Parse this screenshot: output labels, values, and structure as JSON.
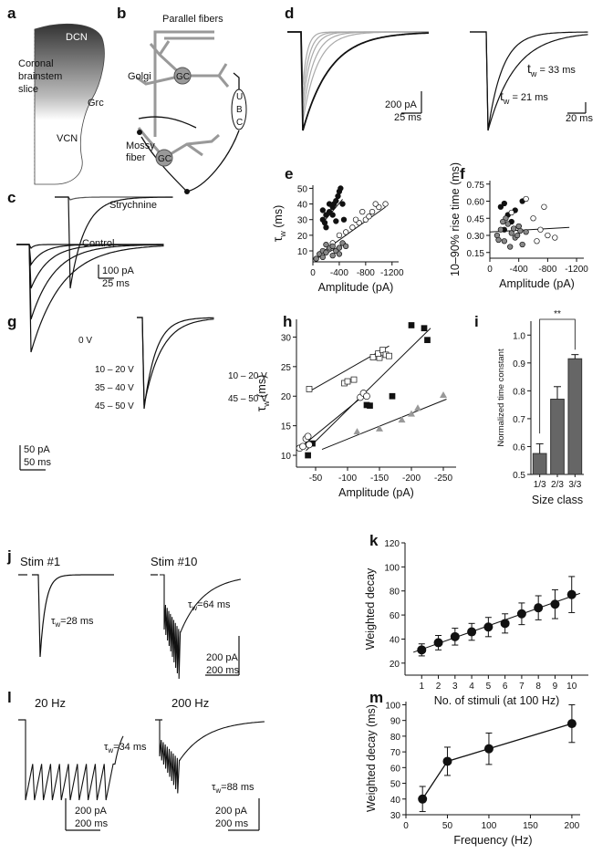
{
  "panel_labels": [
    "a",
    "b",
    "c",
    "d",
    "e",
    "f",
    "g",
    "h",
    "i",
    "j",
    "k",
    "l",
    "m"
  ],
  "panel_a": {
    "labels": [
      "DCN",
      "Coronal",
      "brainstem",
      "slice",
      "Grc",
      "VCN"
    ]
  },
  "panel_b": {
    "labels": [
      "Parallel fibers",
      "Golgi",
      "GC",
      "GC",
      "Mossy",
      "fiber",
      "U",
      "B",
      "C"
    ]
  },
  "panel_c": {
    "labels": [
      "Strychnine",
      "Control",
      "100 pA",
      "25 ms"
    ]
  },
  "panel_d": {
    "labels": [
      "200 pA",
      "25 ms",
      "20 ms"
    ],
    "tau": [
      {
        "sym": "t",
        "sub": "w",
        "rest": " = 33 ms"
      },
      {
        "sym": "t",
        "sub": "w",
        "rest": " = 21 ms"
      }
    ]
  },
  "panel_g": {
    "labels": [
      "0 V",
      "10 – 20 V",
      "35 – 40 V",
      "45 – 50 V",
      "10 – 20 V",
      "45 – 50 V",
      "50 pA",
      "50 ms"
    ]
  },
  "panel_j": {
    "labels": [
      "Stim #1",
      "Stim #10",
      "200 pA",
      "200 ms"
    ],
    "tau": [
      {
        "sym": "τ",
        "sub": "w",
        "rest": "=28 ms"
      },
      {
        "sym": "τ",
        "sub": "w",
        "rest": "=64 ms"
      }
    ]
  },
  "panel_l": {
    "labels": [
      "20 Hz",
      "200 Hz",
      "200 pA",
      "200 ms",
      "200 pA",
      "200 ms"
    ],
    "tau": [
      {
        "sym": "τ",
        "sub": "w",
        "rest": "=34 ms"
      },
      {
        "sym": "τ",
        "sub": "w",
        "rest": "=88 ms"
      }
    ]
  },
  "chart_data": [
    {
      "type": "scatter",
      "panel": "e",
      "xlabel": "Amplitude (pA)",
      "ylabel": {
        "sym": "τ",
        "sub": "w",
        "rest": " (ms)"
      },
      "xlim": [
        0,
        -1300
      ],
      "ylim": [
        3,
        52
      ],
      "xticks": [
        0,
        -400,
        -800,
        -1200
      ],
      "yticks": [
        10,
        20,
        30,
        40,
        50
      ],
      "series": [
        {
          "color": "#111111",
          "marker": "circle",
          "x": [
            -150,
            -180,
            -200,
            -250,
            -300,
            -320,
            -350,
            -380,
            -400,
            -420,
            -150,
            -250,
            -300,
            -450,
            -470,
            -350,
            -200
          ],
          "values": [
            30,
            28,
            33,
            35,
            38,
            40,
            42,
            45,
            48,
            50,
            36,
            40,
            33,
            40,
            30,
            29,
            25
          ]
        },
        {
          "color": "#ffffff",
          "marker": "circle",
          "x": [
            -300,
            -400,
            -500,
            -600,
            -700,
            -800,
            -900,
            -1000,
            -1100,
            -650,
            -750,
            -850,
            -950
          ],
          "values": [
            15,
            20,
            22,
            25,
            28,
            30,
            35,
            38,
            40,
            30,
            35,
            32,
            40
          ]
        },
        {
          "color": "#888888",
          "marker": "circle",
          "x": [
            -50,
            -100,
            -150,
            -200,
            -250,
            -300,
            -350,
            -400,
            -450,
            -500,
            -200,
            -300,
            -150,
            -400
          ],
          "values": [
            5,
            8,
            10,
            9,
            12,
            13,
            10,
            12,
            15,
            13,
            14,
            7,
            6,
            8
          ]
        }
      ],
      "fits": [
        {
          "x": [
            -150,
            -450
          ],
          "y": [
            28,
            43
          ]
        },
        {
          "x": [
            -100,
            -1100
          ],
          "y": [
            8,
            38
          ]
        },
        {
          "x": [
            -50,
            -500
          ],
          "y": [
            5,
            15
          ]
        }
      ]
    },
    {
      "type": "scatter",
      "panel": "f",
      "xlabel": "Amplitude (pA)",
      "ylabel": "10–90% rise time (ms)",
      "xlim": [
        0,
        -1300
      ],
      "ylim": [
        0.1,
        0.78
      ],
      "xticks": [
        0,
        -400,
        -800,
        -1200
      ],
      "yticks": [
        0.15,
        {
          "value": 0.3,
          "label": "0.30"
        },
        0.45,
        {
          "value": 0.6,
          "label": "0.60"
        },
        0.75
      ],
      "series": [
        {
          "color": "#111111",
          "marker": "circle",
          "x": [
            -150,
            -200,
            -250,
            -300,
            -350,
            -400,
            -450,
            -200
          ],
          "values": [
            0.55,
            0.58,
            0.48,
            0.42,
            0.52,
            0.38,
            0.6,
            0.35
          ]
        },
        {
          "color": "#ffffff",
          "marker": "circle",
          "x": [
            -500,
            -600,
            -700,
            -800,
            -900,
            -650,
            -300,
            -750
          ],
          "values": [
            0.62,
            0.45,
            0.35,
            0.3,
            0.28,
            0.25,
            0.5,
            0.55
          ]
        },
        {
          "color": "#888888",
          "marker": "circle",
          "x": [
            -100,
            -150,
            -200,
            -250,
            -300,
            -350,
            -400,
            -450,
            -500,
            -220,
            -280,
            -330,
            -380,
            -180,
            -120,
            -420
          ],
          "values": [
            0.3,
            0.35,
            0.25,
            0.4,
            0.32,
            0.28,
            0.38,
            0.22,
            0.33,
            0.45,
            0.2,
            0.36,
            0.3,
            0.42,
            0.26,
            0.34
          ]
        }
      ],
      "fits": [
        {
          "x": [
            0,
            -1100
          ],
          "y": [
            0.33,
            0.37
          ]
        }
      ]
    },
    {
      "type": "scatter",
      "panel": "h",
      "xlabel": "Amplitude (pA)",
      "ylabel": {
        "sym": "τ",
        "sub": "w",
        "rest": " (ms)"
      },
      "xlim": [
        -20,
        -270
      ],
      "ylim": [
        8,
        33
      ],
      "xticks": [
        -50,
        -100,
        -150,
        -200,
        -250
      ],
      "yticks": [
        10,
        15,
        20,
        25,
        30
      ],
      "series": [
        {
          "color": "#ffffff",
          "marker": "square",
          "x": [
            -40,
            -95,
            -100,
            -110,
            -140,
            -150,
            -148,
            -155,
            -160,
            -165
          ],
          "values": [
            21.2,
            22.2,
            22.5,
            22.8,
            26.6,
            26.5,
            27.2,
            27.8,
            27,
            26.8
          ]
        },
        {
          "color": "#111111",
          "marker": "square",
          "x": [
            -38,
            -45,
            -130,
            -135,
            -170,
            -200,
            -220,
            -225
          ],
          "values": [
            10,
            12,
            18.5,
            18.4,
            20,
            32,
            31.5,
            29.5
          ]
        },
        {
          "color": "#ffffff",
          "marker": "circle",
          "x": [
            -25,
            -30,
            -35,
            -38,
            -40,
            -120,
            -125,
            -130
          ],
          "values": [
            11.2,
            11.5,
            12.8,
            13.2,
            11.8,
            19.8,
            20.5,
            20
          ]
        },
        {
          "color": "#999999",
          "marker": "triangle",
          "x": [
            -115,
            -150,
            -185,
            -200,
            -210,
            -250
          ],
          "values": [
            14,
            14.5,
            16,
            17,
            18,
            20.2
          ]
        }
      ],
      "fits": [
        {
          "x": [
            -40,
            -165
          ],
          "y": [
            20.8,
            28.5
          ]
        },
        {
          "x": [
            -35,
            -230
          ],
          "y": [
            10.8,
            31.5
          ]
        },
        {
          "x": [
            -20,
            -130
          ],
          "y": [
            10.8,
            20.5
          ]
        },
        {
          "x": [
            -60,
            -255
          ],
          "y": [
            11,
            19.5
          ]
        }
      ]
    },
    {
      "type": "bar",
      "panel": "i",
      "xlabel": "Size class",
      "ylabel": "Normalized time constant",
      "color": "#666666",
      "categories": [
        "1/3",
        "2/3",
        "3/3"
      ],
      "values": [
        0.575,
        0.77,
        0.915
      ],
      "errors": [
        0.035,
        0.045,
        0.015
      ],
      "ylim": [
        0.5,
        1.05
      ],
      "yticks": [
        0.5,
        0.6,
        0.7,
        0.8,
        0.9,
        {
          "value": 1,
          "label": "1.0"
        }
      ],
      "annotation": "**"
    },
    {
      "type": "line",
      "panel": "k",
      "xlabel": "No. of stimuli (at 100 Hz)",
      "ylabel": "Weighted decay",
      "connect": false,
      "x": [
        1,
        2,
        3,
        4,
        5,
        6,
        7,
        8,
        9,
        10
      ],
      "values": [
        31,
        37,
        42,
        46,
        50,
        53,
        61,
        66,
        69,
        77
      ],
      "errors": [
        5,
        6,
        7,
        7,
        8,
        8,
        9,
        10,
        12,
        15
      ],
      "xlim": [
        0,
        11
      ],
      "ylim": [
        10,
        120
      ],
      "xticks": [
        1,
        2,
        3,
        4,
        5,
        6,
        7,
        8,
        9,
        10
      ],
      "yticks": [
        20,
        40,
        60,
        80,
        100,
        120
      ],
      "fits": [
        {
          "x": [
            0.5,
            10.5
          ],
          "y": [
            29,
            78
          ]
        }
      ]
    },
    {
      "type": "line",
      "panel": "m",
      "xlabel": "Frequency (Hz)",
      "ylabel": "Weighted decay (ms)",
      "connect": true,
      "x": [
        20,
        50,
        100,
        200
      ],
      "values": [
        40,
        64,
        72,
        88
      ],
      "errors": [
        8,
        9,
        10,
        12
      ],
      "xlim": [
        0,
        210
      ],
      "ylim": [
        30,
        102
      ],
      "xticks": [
        0,
        50,
        100,
        150,
        200
      ],
      "yticks": [
        30,
        40,
        50,
        60,
        70,
        80,
        90,
        100
      ]
    }
  ]
}
